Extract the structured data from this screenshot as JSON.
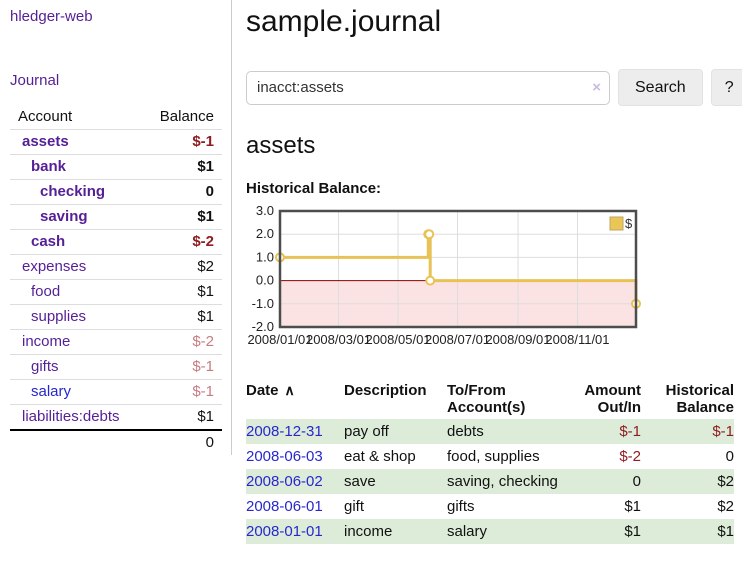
{
  "app": {
    "title": "hledger-web"
  },
  "sidebar": {
    "journal_label": "Journal",
    "table": {
      "account_header": "Account",
      "balance_header": "Balance",
      "rows": [
        {
          "account": "assets",
          "balance": "$-1",
          "depth": 0,
          "bold": true,
          "balance_color": "negative"
        },
        {
          "account": "bank",
          "balance": "$1",
          "depth": 1,
          "bold": true,
          "balance_color": "normal"
        },
        {
          "account": "checking",
          "balance": "0",
          "depth": 2,
          "bold": true,
          "balance_color": "normal"
        },
        {
          "account": "saving",
          "balance": "$1",
          "depth": 2,
          "bold": true,
          "balance_color": "normal"
        },
        {
          "account": "cash",
          "balance": "$-2",
          "depth": 1,
          "bold": true,
          "balance_color": "negative"
        },
        {
          "account": "expenses",
          "balance": "$2",
          "depth": 0,
          "bold": false,
          "balance_color": "normal"
        },
        {
          "account": "food",
          "balance": "$1",
          "depth": 1,
          "bold": false,
          "balance_color": "normal"
        },
        {
          "account": "supplies",
          "balance": "$1",
          "depth": 1,
          "bold": false,
          "balance_color": "normal"
        },
        {
          "account": "income",
          "balance": "$-2",
          "depth": 0,
          "bold": false,
          "balance_color": "negative-muted"
        },
        {
          "account": "gifts",
          "balance": "$-1",
          "depth": 1,
          "bold": false,
          "balance_color": "negative-muted"
        },
        {
          "account": "salary",
          "balance": "$-1",
          "depth": 1,
          "bold": false,
          "balance_color": "negative-muted",
          "link_color": "blue"
        },
        {
          "account": "liabilities:debts",
          "balance": "$1",
          "depth": 0,
          "bold": false,
          "balance_color": "normal"
        }
      ],
      "total": "0"
    }
  },
  "header": {
    "title": "sample.journal"
  },
  "search": {
    "value": "inacct:assets",
    "clear_icon": "×",
    "search_label": "Search",
    "help_label": "?"
  },
  "account_page": {
    "heading": "assets",
    "chart_label": "Historical Balance:"
  },
  "chart_data": {
    "type": "line",
    "style": "step-after",
    "title": "Historical Balance",
    "legend": "$",
    "legend_position": "top-right",
    "ylim": [
      -2,
      3
    ],
    "y_ticks": [
      "3.0",
      "2.0",
      "1.0",
      "0.0",
      "-1.0",
      "-2.0"
    ],
    "x_ticks": [
      "2008/01/01",
      "2008/03/01",
      "2008/05/01",
      "2008/07/01",
      "2008/09/01",
      "2008/11/01"
    ],
    "series": [
      {
        "name": "$",
        "points": [
          {
            "date": "2008-01-01",
            "value": 1
          },
          {
            "date": "2008-06-01",
            "value": 2
          },
          {
            "date": "2008-06-02",
            "value": 2
          },
          {
            "date": "2008-06-03",
            "value": 0
          },
          {
            "date": "2008-12-31",
            "value": -1
          }
        ]
      }
    ],
    "line_color": "#e8c254",
    "marker_fill": "#ffffff",
    "negative_region_fill": "#fbe3e3",
    "zero_line_color": "#8b0000",
    "grid_color": "#dddddd",
    "border_color": "#4d4d4d",
    "grid": true
  },
  "register": {
    "columns": {
      "date": "Date",
      "sort_indicator": "∧",
      "description": "Description",
      "accounts_line1": "To/From",
      "accounts_line2": "Account(s)",
      "amount_line1": "Amount",
      "amount_line2": "Out/In",
      "balance_line1": "Historical",
      "balance_line2": "Balance"
    },
    "rows": [
      {
        "date": "2008-12-31",
        "description": "pay off",
        "accounts": "debts",
        "amount": "$-1",
        "amount_negative": true,
        "balance": "$-1",
        "balance_negative": true
      },
      {
        "date": "2008-06-03",
        "description": "eat & shop",
        "accounts": "food, supplies",
        "amount": "$-2",
        "amount_negative": true,
        "balance": "0",
        "balance_negative": false
      },
      {
        "date": "2008-06-02",
        "description": "save",
        "accounts": "saving, checking",
        "amount": "0",
        "amount_negative": false,
        "balance": "$2",
        "balance_negative": false
      },
      {
        "date": "2008-06-01",
        "description": "gift",
        "accounts": "gifts",
        "amount": "$1",
        "amount_negative": false,
        "balance": "$2",
        "balance_negative": false
      },
      {
        "date": "2008-01-01",
        "description": "income",
        "accounts": "salary",
        "amount": "$1",
        "amount_negative": false,
        "balance": "$1",
        "balance_negative": false
      }
    ]
  }
}
